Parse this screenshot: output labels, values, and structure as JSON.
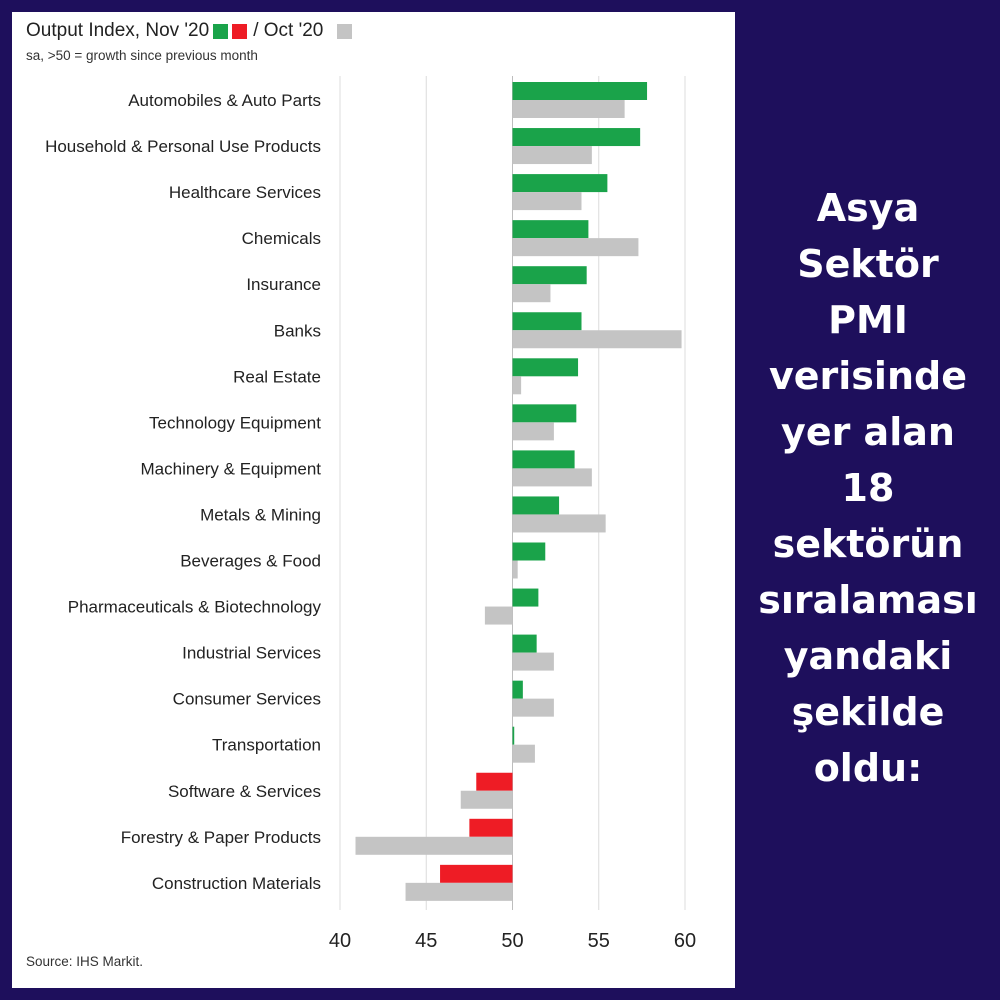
{
  "chart_data": {
    "type": "bar",
    "orientation": "horizontal",
    "title": "Output Index, Nov '20",
    "legend_separator": "/ Oct '20",
    "subtitle": "sa, >50 = growth since previous month",
    "source": "Source: IHS Markit.",
    "baseline": 50,
    "xlim": [
      40,
      62
    ],
    "xticks": [
      40,
      45,
      50,
      55,
      60
    ],
    "grid": "vertical",
    "categories": [
      "Automobiles & Auto Parts",
      "Household & Personal Use Products",
      "Healthcare Services",
      "Chemicals",
      "Insurance",
      "Banks",
      "Real Estate",
      "Technology Equipment",
      "Machinery & Equipment",
      "Metals & Mining",
      "Beverages & Food",
      "Pharmaceuticals & Biotechnology",
      "Industrial Services",
      "Consumer Services",
      "Transportation",
      "Software & Services",
      "Forestry & Paper Products",
      "Construction Materials"
    ],
    "series": [
      {
        "name": "Nov '20",
        "colors": {
          "above": "#1aa34a",
          "below": "#ee1c25"
        },
        "values": [
          57.8,
          57.4,
          55.5,
          54.4,
          54.3,
          54.0,
          53.8,
          53.7,
          53.6,
          52.7,
          51.9,
          51.5,
          51.4,
          50.6,
          50.1,
          47.9,
          47.5,
          45.8
        ]
      },
      {
        "name": "Oct '20",
        "color": "#c4c4c4",
        "values": [
          56.5,
          54.6,
          54.0,
          57.3,
          52.2,
          59.8,
          50.5,
          52.4,
          54.6,
          55.4,
          50.3,
          48.4,
          52.4,
          52.4,
          51.3,
          47.0,
          40.9,
          43.8
        ]
      }
    ]
  },
  "side_caption": {
    "lines": [
      "Asya",
      "Sektör",
      "PMI",
      "verisinde",
      "yer alan",
      "18",
      "sektörün",
      "sıralaması",
      "yandaki",
      "şekilde",
      "oldu:"
    ]
  }
}
